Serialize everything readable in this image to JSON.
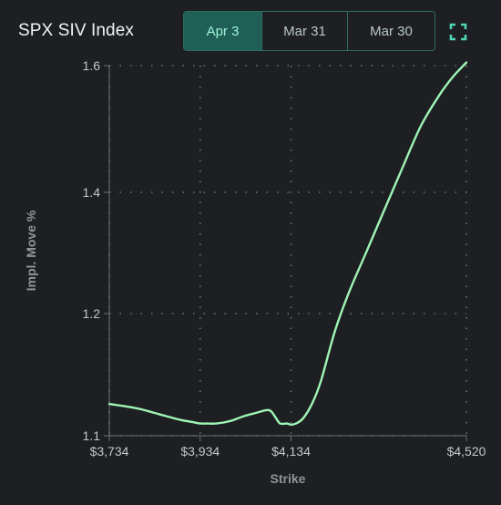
{
  "header": {
    "title": "SPX SIV Index",
    "tabs": [
      {
        "label": "Apr 3",
        "active": true
      },
      {
        "label": "Mar 31",
        "active": false
      },
      {
        "label": "Mar 30",
        "active": false
      }
    ],
    "fullscreen_icon": "expand-icon"
  },
  "colors": {
    "accent": "#9ff3d8",
    "line": "#9ff5b4",
    "tab_active_bg": "#1f5f55",
    "tab_border": "#2f6d62",
    "background": "#1d1f23"
  },
  "chart_data": {
    "type": "line",
    "title": "SPX SIV Index",
    "xlabel": "Strike",
    "ylabel": "Impl. Move %",
    "xlim": [
      3734,
      4520
    ],
    "ylim": [
      1.1,
      1.6
    ],
    "x_ticks": [
      3734,
      3934,
      4134,
      4520
    ],
    "x_tick_labels": [
      "$3,734",
      "$3,934",
      "$4,134",
      "$4,520"
    ],
    "y_ticks": [
      1.1,
      1.2,
      1.4,
      1.6
    ],
    "y_tick_labels": [
      "1.1",
      "1.2",
      "1.4",
      "1.6"
    ],
    "grid": true,
    "series": [
      {
        "x": [
          3734,
          3770,
          3800,
          3830,
          3860,
          3890,
          3920,
          3934,
          3950,
          3970,
          4000,
          4030,
          4060,
          4080,
          4090,
          4100,
          4110,
          4125,
          4134,
          4145,
          4160,
          4180,
          4200,
          4230,
          4260,
          4300,
          4340,
          4380,
          4420,
          4460,
          4490,
          4520
        ],
        "y": [
          1.126,
          1.124,
          1.122,
          1.119,
          1.116,
          1.113,
          1.111,
          1.11,
          1.11,
          1.11,
          1.112,
          1.116,
          1.119,
          1.121,
          1.12,
          1.115,
          1.11,
          1.11,
          1.109,
          1.11,
          1.114,
          1.126,
          1.145,
          1.185,
          1.232,
          1.302,
          1.372,
          1.44,
          1.505,
          1.553,
          1.582,
          1.605
        ]
      }
    ]
  }
}
